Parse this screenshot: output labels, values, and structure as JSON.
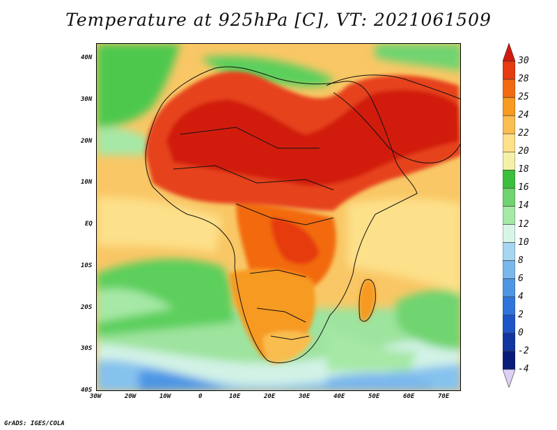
{
  "title": "Temperature at 925hPa [C], VT: 2021061509",
  "credit": "GrADS: IGES/COLA",
  "map": {
    "lon_range": [
      -30,
      75
    ],
    "lat_range": [
      -40,
      45
    ],
    "lon_ticks": [
      "30W",
      "20W",
      "10W",
      "0",
      "10E",
      "20E",
      "30E",
      "40E",
      "50E",
      "60E",
      "70E"
    ],
    "lat_ticks": [
      "40N",
      "30N",
      "20N",
      "10N",
      "EQ",
      "10S",
      "20S",
      "30S",
      "40S"
    ]
  },
  "colorbar": {
    "labels": [
      "30",
      "28",
      "25",
      "24",
      "22",
      "20",
      "18",
      "16",
      "14",
      "12",
      "10",
      "8",
      "6",
      "4",
      "2",
      "0",
      "-2",
      "-4"
    ],
    "colors": [
      "#d11a10",
      "#e63a10",
      "#f26a10",
      "#f79a20",
      "#f9bd50",
      "#fde08a",
      "#f5f0a8",
      "#3cbf3c",
      "#6fd46f",
      "#a6e8a6",
      "#d8f5e8",
      "#a6d6f0",
      "#7ab8ec",
      "#4d96e4",
      "#2f74da",
      "#1d55c6",
      "#1236a0",
      "#0a1c78"
    ]
  }
}
